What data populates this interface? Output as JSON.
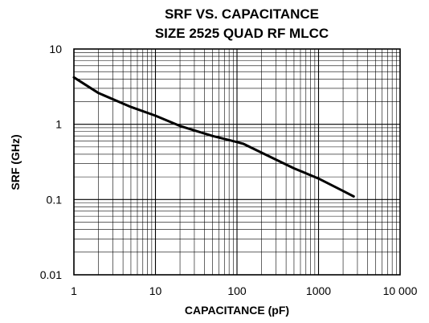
{
  "chart_data": {
    "type": "line",
    "title": "SRF VS. CAPACITANCE",
    "subtitle": "SIZE 2525 QUAD RF MLCC",
    "xlabel": "CAPACITANCE (pF)",
    "ylabel": "SRF (GHz)",
    "xscale": "log",
    "yscale": "log",
    "xlim": [
      1,
      10000
    ],
    "ylim": [
      0.01,
      10
    ],
    "x_ticks": [
      "1",
      "10",
      "100",
      "1000",
      "10 000"
    ],
    "y_ticks": [
      "10",
      "1",
      "0.1",
      "0.01"
    ],
    "grid": true,
    "series": [
      {
        "x": [
          1,
          2,
          5,
          10,
          20,
          50,
          100,
          120,
          200,
          500,
          1000,
          2000,
          2700
        ],
        "y": [
          4.2,
          2.6,
          1.7,
          1.3,
          0.95,
          0.7,
          0.58,
          0.55,
          0.42,
          0.26,
          0.19,
          0.13,
          0.11
        ]
      }
    ]
  }
}
